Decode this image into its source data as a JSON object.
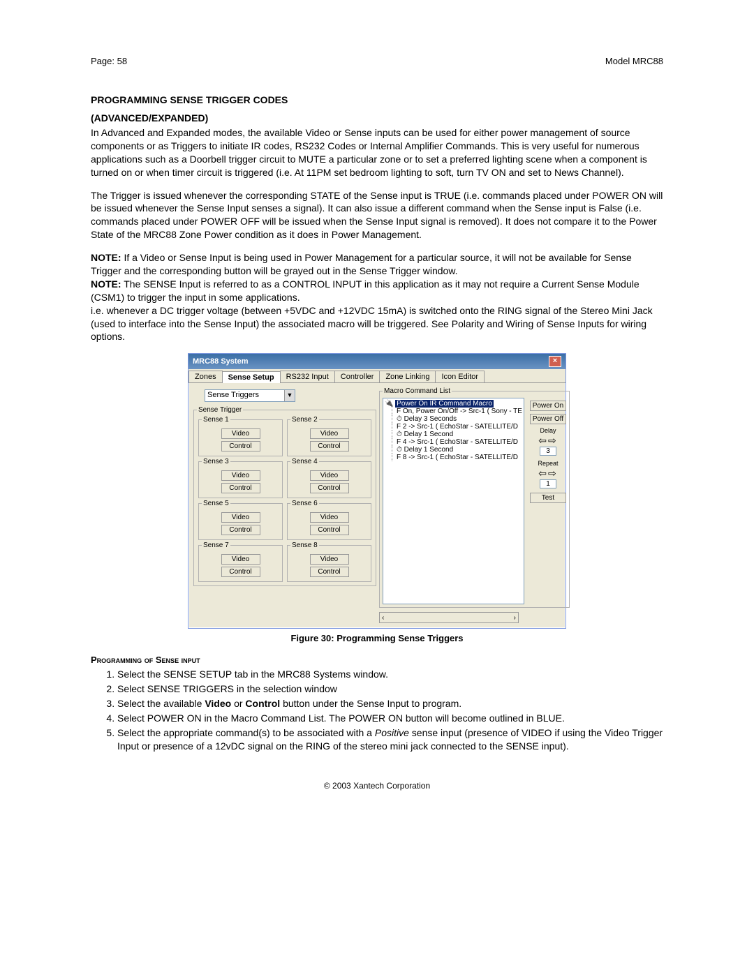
{
  "header": {
    "page": "Page: 58",
    "model": "Model MRC88"
  },
  "heading": {
    "l1": "PROGRAMMING SENSE TRIGGER CODES",
    "l2": "(ADVANCED/EXPANDED)"
  },
  "para1": "In Advanced and Expanded modes, the available Video or Sense inputs can be used for either power management of source components or as Triggers to initiate IR codes, RS232 Codes or Internal Amplifier Commands. This is very useful for numerous applications such as a Doorbell trigger circuit to MUTE a particular zone or to set a preferred lighting scene when a component is turned on or when timer circuit is triggered (i.e. At 11PM set bedroom lighting to soft, turn TV ON and set to News Channel).",
  "para2": "The Trigger is issued whenever the corresponding STATE of the Sense input is TRUE (i.e. commands placed under POWER ON will be issued whenever the Sense Input senses a signal). It can also issue a different command when the Sense input is False (i.e. commands placed under POWER OFF will be issued when the Sense Input signal is removed). It does not compare it to the Power State of the MRC88 Zone Power condition as it does in Power Management.",
  "note1a": "NOTE:",
  "note1b": " If a Video or Sense Input is being used in Power Management for a particular source, it will not be available for Sense Trigger and the corresponding button will be grayed out in the Sense Trigger window.",
  "note2a": "NOTE:",
  "note2b": " The SENSE Input is referred to as a CONTROL INPUT in this application as it may not require a Current Sense Module (CSM1) to trigger the input in some applications.",
  "para3": "i.e. whenever a DC trigger voltage (between +5VDC and +12VDC 15mA) is switched onto the RING signal of the Stereo Mini Jack (used to interface into the Sense Input) the associated macro will be triggered. See Polarity and Wiring of Sense Inputs for wiring options.",
  "figCaption": "Figure 30: Programming Sense Triggers",
  "progHeading": "Programming of Sense input",
  "steps": [
    "Select the SENSE SETUP tab in the MRC88 Systems window.",
    "Select SENSE TRIGGERS in the selection window",
    "Select the available Video or Control button under the Sense Input to program.",
    "Select POWER ON in the Macro Command List. The POWER ON button will become outlined in BLUE.",
    "Select the appropriate command(s) to be associated with a Positive sense input (presence of VIDEO if using the Video Trigger Input or presence of a 12vDC signal on the RING of the stereo mini jack connected to the SENSE input)."
  ],
  "footer": "© 2003 Xantech Corporation",
  "dialog": {
    "title": "MRC88 System",
    "tabs": [
      "Zones",
      "Sense Setup",
      "RS232 Input",
      "Controller",
      "Zone Linking",
      "Icon Editor"
    ],
    "combo": "Sense Triggers",
    "groupLabel": "Sense Trigger",
    "senses": [
      "Sense 1",
      "Sense 2",
      "Sense 3",
      "Sense 4",
      "Sense 5",
      "Sense 6",
      "Sense 7",
      "Sense 8"
    ],
    "btnVideo": "Video",
    "btnControl": "Control",
    "macroLabel": "Macro Command List",
    "tree": {
      "root": "Power On IR Command Macro",
      "items": [
        "F  On, Power On/Off -> Src-1 ( Sony - TE",
        "⏱ Delay 3 Seconds",
        "F  2 -> Src-1 ( EchoStar - SATELLITE/D",
        "⏱ Delay 1 Second",
        "F  4 -> Src-1 ( EchoStar - SATELLITE/D",
        "⏱ Delay 1 Second",
        "F  8 -> Src-1 ( EchoStar - SATELLITE/D"
      ]
    },
    "side": {
      "powerOn": "Power On",
      "powerOff": "Power Off",
      "delay": "Delay",
      "delayVal": "3",
      "repeat": "Repeat",
      "repeatVal": "1",
      "test": "Test"
    }
  }
}
